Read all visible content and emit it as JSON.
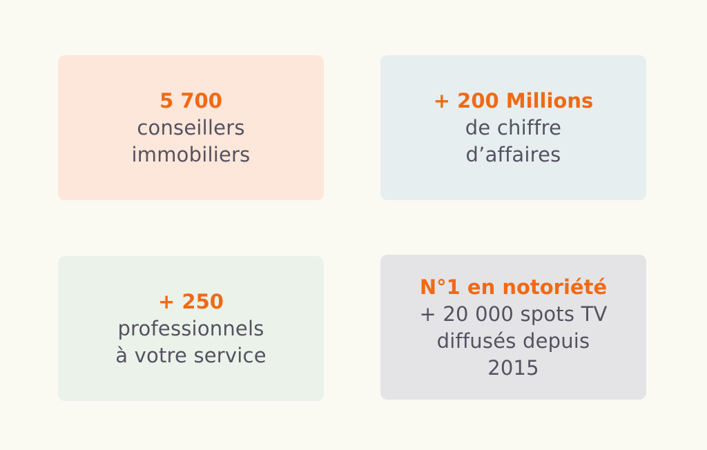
{
  "colors": {
    "background": "#fafaf3",
    "accent": "#ef6a14",
    "text": "#545260"
  },
  "cards": [
    {
      "highlight": "5 700",
      "lines": [
        "conseillers",
        "immobiliers"
      ],
      "background": "#fde6da"
    },
    {
      "highlight": "+ 200 Millions",
      "lines": [
        "de chiffre",
        "d’affaires"
      ],
      "background": "#e6eeef"
    },
    {
      "highlight": "+ 250",
      "lines": [
        "professionnels",
        "à votre service"
      ],
      "background": "#ebf2ea"
    },
    {
      "highlight": "N°1 en notoriété",
      "lines": [
        "+ 20 000 spots TV",
        "diffusés depuis",
        "2015"
      ],
      "background": "#e4e4e6"
    }
  ]
}
